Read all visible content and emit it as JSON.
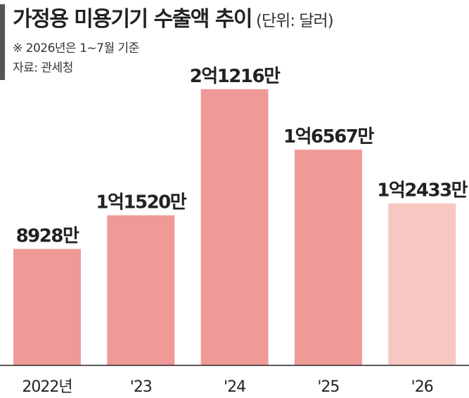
{
  "header": {
    "title": "가정용 미용기기 수출액 추이",
    "unit": "(단위: 달러)",
    "note": "※ 2026년은 1~7월 기준",
    "source": "자료: 관세청"
  },
  "colors": {
    "bar": "#f09a98",
    "bar_highlight": "#f7c7c2",
    "text": "#222222",
    "axis": "#222222"
  },
  "chart_data": {
    "type": "bar",
    "title": "가정용 미용기기 수출액 추이",
    "categories": [
      "2022년",
      "'23",
      "'24",
      "'25",
      "'26"
    ],
    "values": [
      89280000,
      115200000,
      212160000,
      165670000,
      124330000
    ],
    "value_labels": [
      "8928만",
      "1억1520만",
      "2억1216만",
      "1억6567만",
      "1억2433만"
    ],
    "ylim": [
      0,
      250000000
    ],
    "grid": false,
    "legend": "none",
    "highlight_index": 4
  }
}
